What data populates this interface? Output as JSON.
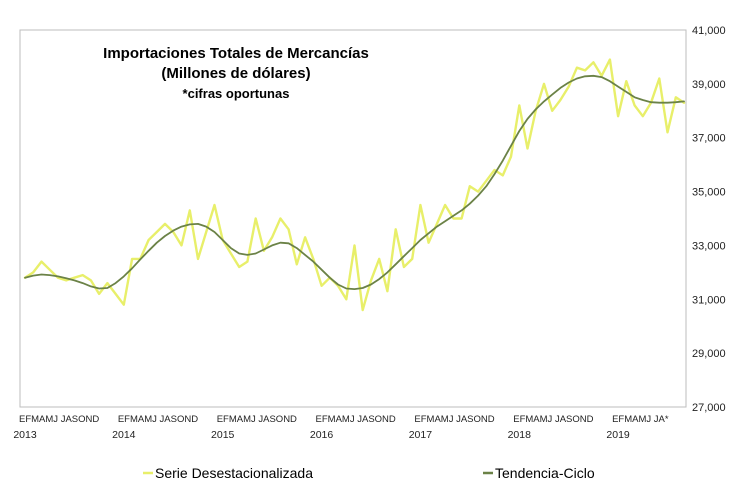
{
  "chart_data": {
    "type": "line",
    "title_lines": [
      "Importaciones Totales de Mercancías",
      "(Millones de dólares)",
      "*cifras oportunas"
    ],
    "xlabel": "",
    "ylabel": "",
    "ylim": [
      27000,
      41000
    ],
    "y_ticks": [
      "41,000",
      "39,000",
      "37,000",
      "35,000",
      "33,000",
      "31,000",
      "29,000",
      "27,000"
    ],
    "y_axis_position": "right",
    "grid": false,
    "legend_position": "bottom",
    "month_tick_label_rows": [
      "EFMAMJ JASOND",
      "EFMAMJ JASOND",
      "EFMAMJ JASOND",
      "EFMAMJ JASOND",
      "EFMAMJ JASOND",
      "EFMAMJ JASOND",
      "EFMAMJ JA*"
    ],
    "years": [
      "2013",
      "2014",
      "2015",
      "2016",
      "2017",
      "2018",
      "2019"
    ],
    "x_start": "2013-01",
    "x_end": "2019-08",
    "series": [
      {
        "name": "Serie Desestacionalizada",
        "color": "#e8ef6a",
        "values": [
          31800,
          32000,
          32400,
          32100,
          31800,
          31700,
          31800,
          31900,
          31700,
          31200,
          31600,
          31200,
          30800,
          32500,
          32500,
          33200,
          33500,
          33800,
          33500,
          33000,
          34300,
          32500,
          33500,
          34500,
          33200,
          32700,
          32200,
          32400,
          34000,
          32800,
          33300,
          34000,
          33600,
          32300,
          33300,
          32500,
          31500,
          31800,
          31500,
          31000,
          33000,
          30600,
          31700,
          32500,
          31300,
          33600,
          32200,
          32500,
          34500,
          33100,
          33800,
          34500,
          34000,
          34000,
          35200,
          35000,
          35400,
          35800,
          35600,
          36300,
          38200,
          36600,
          38000,
          39000,
          38000,
          38400,
          38900,
          39600,
          39500,
          39800,
          39300,
          39900,
          37800,
          39100,
          38200,
          37800,
          38300,
          39200,
          37200,
          38500,
          38300
        ]
      },
      {
        "name": "Tendencia-Ciclo",
        "color": "#6b8247",
        "values": [
          31800,
          31880,
          31920,
          31900,
          31850,
          31780,
          31700,
          31600,
          31480,
          31400,
          31420,
          31600,
          31850,
          32150,
          32480,
          32800,
          33100,
          33350,
          33550,
          33700,
          33780,
          33800,
          33700,
          33500,
          33200,
          32900,
          32700,
          32650,
          32700,
          32850,
          33000,
          33100,
          33080,
          32900,
          32650,
          32400,
          32100,
          31800,
          31550,
          31400,
          31380,
          31420,
          31550,
          31750,
          32000,
          32300,
          32600,
          32900,
          33200,
          33450,
          33700,
          33900,
          34100,
          34300,
          34550,
          34850,
          35200,
          35650,
          36150,
          36700,
          37250,
          37700,
          38050,
          38350,
          38600,
          38850,
          39050,
          39200,
          39280,
          39300,
          39250,
          39100,
          38900,
          38700,
          38500,
          38400,
          38320,
          38300,
          38300,
          38320,
          38350
        ]
      }
    ]
  }
}
